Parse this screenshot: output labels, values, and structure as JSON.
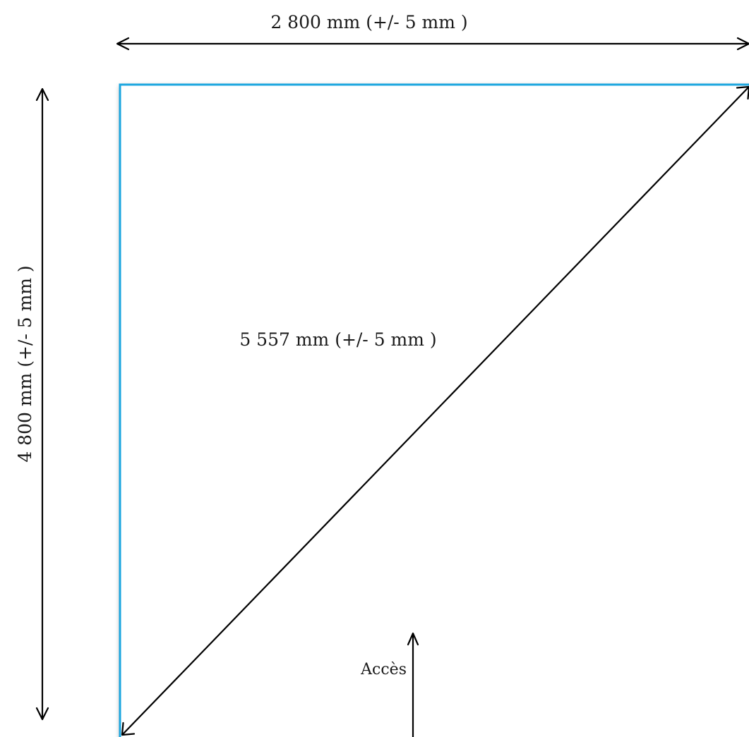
{
  "dimensions": {
    "width_label": "2 800 mm (+/- 5 mm )",
    "height_label": "4 800 mm (+/- 5 mm )",
    "diagonal_label": "5 557 mm (+/- 5 mm )"
  },
  "access": {
    "label": "Accès"
  },
  "colors": {
    "outline": "#1ba6df",
    "arrows": "#000000",
    "text": "#1a1a1a"
  }
}
